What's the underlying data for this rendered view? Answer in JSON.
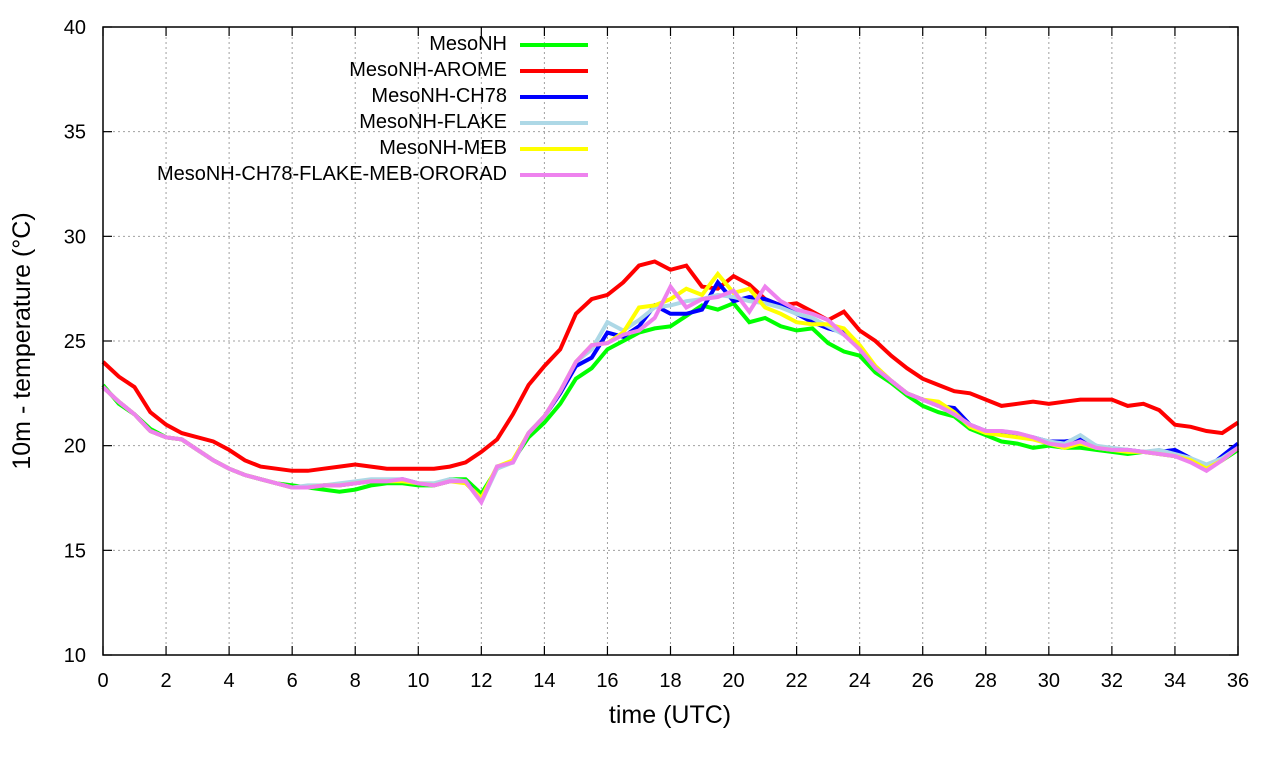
{
  "chart_data": {
    "type": "line",
    "title": "",
    "xlabel": "time (UTC)",
    "ylabel": "10m - temperature (°C)",
    "xlim": [
      0,
      36
    ],
    "ylim": [
      10,
      40
    ],
    "xticks": [
      0,
      2,
      4,
      6,
      8,
      10,
      12,
      14,
      16,
      18,
      20,
      22,
      24,
      26,
      28,
      30,
      32,
      34,
      36
    ],
    "yticks": [
      10,
      15,
      20,
      25,
      30,
      35,
      40
    ],
    "grid": true,
    "legend_placement": "top-left",
    "x_step": 0.5,
    "series": [
      {
        "name": "MesoNH",
        "color": "#00ff00",
        "values": [
          22.9,
          22.0,
          21.5,
          20.8,
          20.4,
          20.3,
          19.8,
          19.3,
          18.9,
          18.6,
          18.4,
          18.2,
          18.1,
          18.0,
          17.9,
          17.8,
          17.9,
          18.1,
          18.2,
          18.2,
          18.1,
          18.1,
          18.4,
          18.4,
          17.7,
          18.9,
          19.3,
          20.4,
          21.1,
          22.0,
          23.2,
          23.7,
          24.6,
          25.0,
          25.4,
          25.6,
          25.7,
          26.2,
          26.7,
          26.5,
          26.8,
          25.9,
          26.1,
          25.7,
          25.5,
          25.6,
          24.9,
          24.5,
          24.3,
          23.5,
          23.0,
          22.4,
          21.9,
          21.6,
          21.4,
          20.8,
          20.5,
          20.2,
          20.1,
          19.9,
          20.0,
          19.9,
          19.9,
          19.8,
          19.7,
          19.6,
          19.7,
          19.6,
          19.5,
          19.3,
          18.9,
          19.3,
          19.8
        ]
      },
      {
        "name": "MesoNH-AROME",
        "color": "#ff0000",
        "values": [
          24.0,
          23.3,
          22.8,
          21.6,
          21.0,
          20.6,
          20.4,
          20.2,
          19.8,
          19.3,
          19.0,
          18.9,
          18.8,
          18.8,
          18.9,
          19.0,
          19.1,
          19.0,
          18.9,
          18.9,
          18.9,
          18.9,
          19.0,
          19.2,
          19.7,
          20.3,
          21.5,
          22.9,
          23.8,
          24.6,
          26.3,
          27.0,
          27.2,
          27.8,
          28.6,
          28.8,
          28.4,
          28.6,
          27.6,
          27.5,
          28.1,
          27.7,
          27.0,
          26.7,
          26.8,
          26.4,
          26.0,
          26.4,
          25.5,
          25.0,
          24.3,
          23.7,
          23.2,
          22.9,
          22.6,
          22.5,
          22.2,
          21.9,
          22.0,
          22.1,
          22.0,
          22.1,
          22.2,
          22.2,
          22.2,
          21.9,
          22.0,
          21.7,
          21.0,
          20.9,
          20.7,
          20.6,
          21.1
        ]
      },
      {
        "name": "MesoNH-CH78",
        "color": "#0000ff",
        "values": [
          22.8,
          22.1,
          21.5,
          20.7,
          20.4,
          20.3,
          19.8,
          19.3,
          18.9,
          18.6,
          18.4,
          18.2,
          18.0,
          18.0,
          18.1,
          18.1,
          18.2,
          18.3,
          18.3,
          18.4,
          18.2,
          18.1,
          18.3,
          18.3,
          17.4,
          19.0,
          19.2,
          20.6,
          21.4,
          22.5,
          23.8,
          24.2,
          25.4,
          25.2,
          25.7,
          26.7,
          26.3,
          26.3,
          26.5,
          27.8,
          26.9,
          27.1,
          27.0,
          26.7,
          26.3,
          25.9,
          25.6,
          25.4,
          24.6,
          23.7,
          23.1,
          22.5,
          22.2,
          21.9,
          21.8,
          21.0,
          20.7,
          20.6,
          20.5,
          20.4,
          20.2,
          20.2,
          20.3,
          20.0,
          19.8,
          19.8,
          19.7,
          19.7,
          19.8,
          19.4,
          18.9,
          19.5,
          20.1
        ]
      },
      {
        "name": "MesoNH-FLAKE",
        "color": "#add8e6",
        "values": [
          22.8,
          22.1,
          21.5,
          20.7,
          20.4,
          20.3,
          19.8,
          19.3,
          18.9,
          18.6,
          18.4,
          18.2,
          18.0,
          18.1,
          18.1,
          18.2,
          18.3,
          18.4,
          18.4,
          18.4,
          18.2,
          18.2,
          18.4,
          18.3,
          17.3,
          18.9,
          19.2,
          20.6,
          21.4,
          22.6,
          24.0,
          24.6,
          25.9,
          25.5,
          26.0,
          26.6,
          26.7,
          26.9,
          27.0,
          27.2,
          27.1,
          26.9,
          26.8,
          26.6,
          26.3,
          26.1,
          25.7,
          25.3,
          24.7,
          23.8,
          23.1,
          22.5,
          22.2,
          21.9,
          21.5,
          21.0,
          20.7,
          20.7,
          20.6,
          20.4,
          20.2,
          20.1,
          20.5,
          20.0,
          19.9,
          19.8,
          19.7,
          19.8,
          19.6,
          19.4,
          19.1,
          19.4,
          19.9
        ]
      },
      {
        "name": "MesoNH-MEB",
        "color": "#ffff00",
        "values": [
          22.8,
          22.1,
          21.5,
          20.7,
          20.4,
          20.3,
          19.8,
          19.3,
          18.9,
          18.6,
          18.4,
          18.2,
          18.0,
          18.0,
          18.1,
          18.1,
          18.2,
          18.3,
          18.3,
          18.3,
          18.2,
          18.1,
          18.3,
          18.2,
          17.5,
          19.0,
          19.3,
          20.6,
          21.4,
          22.6,
          24.0,
          24.8,
          24.9,
          25.4,
          26.6,
          26.7,
          27.0,
          27.5,
          27.2,
          28.2,
          27.3,
          27.5,
          26.6,
          26.3,
          25.9,
          25.8,
          25.8,
          25.6,
          24.8,
          23.8,
          23.1,
          22.5,
          22.2,
          22.1,
          21.6,
          20.9,
          20.6,
          20.5,
          20.4,
          20.3,
          20.1,
          19.9,
          20.1,
          19.9,
          19.8,
          19.7,
          19.7,
          19.6,
          19.5,
          19.3,
          18.9,
          19.3,
          19.9
        ]
      },
      {
        "name": "MesoNH-CH78-FLAKE-MEB-ORORAD",
        "color": "#ee82ee",
        "values": [
          22.8,
          22.1,
          21.5,
          20.7,
          20.4,
          20.3,
          19.8,
          19.3,
          18.9,
          18.6,
          18.4,
          18.2,
          18.0,
          18.0,
          18.1,
          18.1,
          18.2,
          18.3,
          18.3,
          18.4,
          18.2,
          18.1,
          18.3,
          18.3,
          17.3,
          19.0,
          19.2,
          20.6,
          21.4,
          22.6,
          24.0,
          24.8,
          24.9,
          25.3,
          25.5,
          26.1,
          27.6,
          26.6,
          27.0,
          27.1,
          27.4,
          26.4,
          27.6,
          26.9,
          26.5,
          26.3,
          26.0,
          25.3,
          24.6,
          23.7,
          23.1,
          22.5,
          22.2,
          21.9,
          21.5,
          21.0,
          20.7,
          20.7,
          20.6,
          20.4,
          20.1,
          20.0,
          20.2,
          19.9,
          19.8,
          19.8,
          19.7,
          19.6,
          19.5,
          19.2,
          18.8,
          19.3,
          19.9
        ]
      }
    ]
  }
}
